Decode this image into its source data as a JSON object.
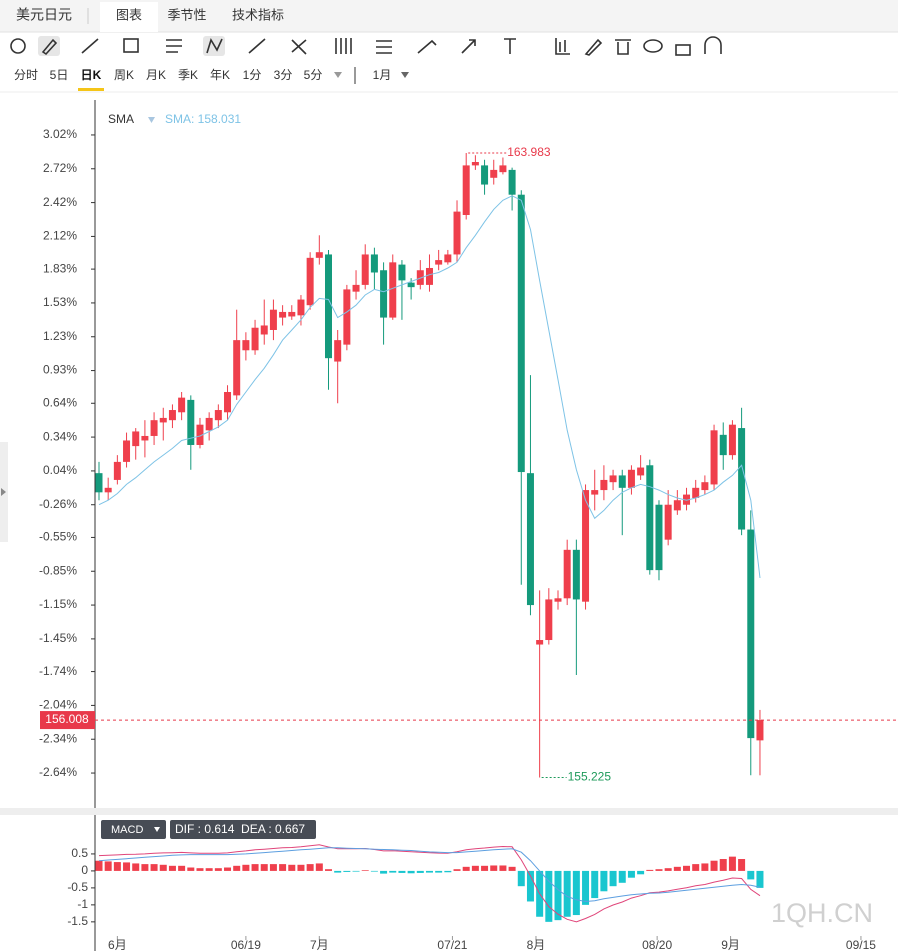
{
  "header": {
    "title": "美元日元",
    "tabs": [
      "图表",
      "季节性",
      "技术指标"
    ]
  },
  "periods": [
    "分时",
    "5日",
    "日K",
    "周K",
    "月K",
    "季K",
    "年K",
    "1分",
    "3分",
    "5分"
  ],
  "active_period": 2,
  "range": "1月",
  "watermark": "1QH.CN",
  "chart_data": [
    {
      "type": "candlestick",
      "indicator": "SMA",
      "indicator_value": "SMA: 158.031",
      "up_color": "#ef3f4c",
      "down_color": "#149a7c",
      "sma_color": "#7ec3e6",
      "high_label": "163.983",
      "low_label": "155.225",
      "last_label": "156.008",
      "ylim": [
        -2.95,
        3.33
      ],
      "yticks": [
        {
          "value": 3.02,
          "label": "3.02%"
        },
        {
          "value": 2.72,
          "label": "2.72%"
        },
        {
          "value": 2.42,
          "label": "2.42%"
        },
        {
          "value": 2.12,
          "label": "2.12%"
        },
        {
          "value": 1.83,
          "label": "1.83%"
        },
        {
          "value": 1.53,
          "label": "1.53%"
        },
        {
          "value": 1.23,
          "label": "1.23%"
        },
        {
          "value": 0.93,
          "label": "0.93%"
        },
        {
          "value": 0.64,
          "label": "0.64%"
        },
        {
          "value": 0.34,
          "label": "0.34%"
        },
        {
          "value": 0.04,
          "label": "0.04%"
        },
        {
          "value": -0.26,
          "label": "-0.26%"
        },
        {
          "value": -0.55,
          "label": "-0.55%"
        },
        {
          "value": -0.85,
          "label": "-0.85%"
        },
        {
          "value": -1.15,
          "label": "-1.15%"
        },
        {
          "value": -1.45,
          "label": "-1.45%"
        },
        {
          "value": -1.74,
          "label": "-1.74%"
        },
        {
          "value": -2.04,
          "label": "-2.04%"
        },
        {
          "value": -2.34,
          "label": "-2.34%"
        },
        {
          "value": -2.64,
          "label": "-2.64%"
        }
      ],
      "xticks": [
        {
          "value": 2,
          "label": "6月"
        },
        {
          "value": 16,
          "label": "06/19"
        },
        {
          "value": 24,
          "label": "7月"
        },
        {
          "value": 38.5,
          "label": "07/21"
        },
        {
          "value": 47.6,
          "label": "8月"
        },
        {
          "value": 60.8,
          "label": "08/20"
        },
        {
          "value": 68.8,
          "label": "9月"
        },
        {
          "value": 83,
          "label": "09/15"
        }
      ],
      "open": [
        0.02,
        -0.15,
        -0.04,
        0.12,
        0.26,
        0.31,
        0.35,
        0.47,
        0.49,
        0.56,
        0.67,
        0.27,
        0.4,
        0.49,
        0.56,
        0.71,
        1.11,
        1.11,
        1.25,
        1.29,
        1.4,
        1.41,
        1.42,
        1.51,
        1.93,
        1.96,
        1.01,
        1.16,
        1.63,
        1.69,
        1.96,
        1.82,
        1.4,
        1.87,
        1.71,
        1.69,
        1.69,
        1.87,
        1.89,
        1.96,
        2.31,
        2.75,
        2.75,
        2.64,
        2.69,
        2.71,
        2.49,
        0.02,
        -1.5,
        -1.46,
        -1.12,
        -1.09,
        -0.66,
        -1.12,
        -0.17,
        -0.13,
        -0.06,
        0.0,
        -0.11,
        0.0,
        0.09,
        -0.26,
        -0.57,
        -0.31,
        -0.26,
        -0.2,
        -0.13,
        -0.08,
        0.36,
        0.18,
        0.42,
        -0.48,
        -2.35
      ],
      "high": [
        0.12,
        -0.02,
        0.18,
        0.38,
        0.42,
        0.49,
        0.56,
        0.6,
        0.63,
        0.74,
        0.71,
        0.51,
        0.56,
        0.63,
        0.8,
        1.47,
        1.27,
        1.38,
        1.56,
        1.56,
        1.51,
        1.51,
        1.6,
        1.98,
        2.13,
        2.0,
        1.29,
        1.69,
        1.82,
        2.05,
        2.02,
        1.89,
        1.96,
        1.91,
        1.75,
        1.91,
        1.96,
        2.0,
        2.0,
        2.44,
        2.86,
        2.84,
        2.8,
        2.8,
        2.82,
        2.73,
        2.53,
        0.89,
        -1.02,
        -1.0,
        -1.02,
        -0.57,
        -0.57,
        -0.08,
        0.05,
        0.09,
        0.05,
        0.05,
        0.09,
        0.18,
        0.14,
        -0.22,
        -0.13,
        -0.13,
        -0.11,
        -0.04,
        0.0,
        0.45,
        0.47,
        0.49,
        0.6,
        -0.31,
        -2.08
      ],
      "low": [
        -0.22,
        -0.22,
        -0.08,
        0.07,
        0.14,
        0.16,
        0.27,
        0.31,
        0.42,
        0.49,
        0.05,
        0.24,
        0.31,
        0.42,
        0.49,
        0.67,
        1.02,
        1.07,
        1.16,
        1.2,
        1.33,
        1.38,
        1.33,
        1.47,
        1.87,
        0.76,
        0.64,
        1.11,
        1.56,
        1.65,
        1.65,
        1.16,
        1.38,
        1.38,
        1.56,
        1.65,
        1.63,
        1.82,
        1.87,
        1.89,
        2.27,
        2.71,
        2.49,
        2.58,
        2.67,
        2.35,
        -0.97,
        -1.24,
        -2.68,
        -1.5,
        -1.19,
        -1.15,
        -1.77,
        -1.19,
        -0.31,
        -0.22,
        -0.13,
        -0.53,
        -0.17,
        -0.04,
        -0.88,
        -0.93,
        -0.62,
        -0.35,
        -0.31,
        -0.24,
        -0.17,
        -0.13,
        0.05,
        0.14,
        -0.53,
        -2.66,
        -2.66
      ],
      "close": [
        -0.15,
        -0.11,
        0.12,
        0.31,
        0.39,
        0.35,
        0.49,
        0.51,
        0.58,
        0.69,
        0.27,
        0.45,
        0.51,
        0.58,
        0.74,
        1.2,
        1.2,
        1.31,
        1.33,
        1.47,
        1.45,
        1.45,
        1.56,
        1.93,
        1.98,
        1.04,
        1.2,
        1.65,
        1.69,
        1.96,
        1.8,
        1.4,
        1.89,
        1.73,
        1.67,
        1.82,
        1.84,
        1.91,
        1.96,
        2.34,
        2.75,
        2.78,
        2.58,
        2.71,
        2.75,
        2.49,
        0.03,
        -1.15,
        -1.46,
        -1.1,
        -1.09,
        -0.66,
        -1.1,
        -0.13,
        -0.13,
        -0.04,
        0.0,
        -0.11,
        0.05,
        0.07,
        -0.84,
        -0.84,
        -0.26,
        -0.22,
        -0.17,
        -0.11,
        -0.06,
        0.4,
        0.18,
        0.45,
        -0.48,
        -2.33,
        -2.17
      ],
      "sma": [
        -0.26,
        -0.22,
        -0.16,
        -0.08,
        -0.02,
        0.05,
        0.12,
        0.18,
        0.24,
        0.31,
        0.33,
        0.35,
        0.39,
        0.43,
        0.49,
        0.63,
        0.74,
        0.85,
        0.95,
        1.07,
        1.2,
        1.29,
        1.38,
        1.49,
        1.57,
        1.56,
        1.4,
        1.45,
        1.51,
        1.6,
        1.65,
        1.63,
        1.66,
        1.69,
        1.72,
        1.75,
        1.78,
        1.8,
        1.84,
        1.89,
        2.02,
        2.13,
        2.25,
        2.36,
        2.44,
        2.48,
        2.44,
        2.18,
        1.73,
        1.29,
        0.85,
        0.4,
        0.05,
        -0.22,
        -0.38,
        -0.31,
        -0.22,
        -0.15,
        -0.11,
        -0.08,
        -0.1,
        -0.13,
        -0.17,
        -0.2,
        -0.22,
        -0.2,
        -0.17,
        -0.13,
        -0.06,
        0.0,
        0.09,
        -0.22,
        -0.91
      ]
    },
    {
      "type": "macd",
      "indicator": "MACD",
      "info": "DIF : 0.614  DEA : 0.667",
      "bar_up_color": "#ef3f4c",
      "bar_down_color": "#19c6cf",
      "dif_color": "#e0457a",
      "dea_color": "#5d9fe0",
      "ylim": [
        -1.74,
        0.91
      ],
      "yticks": [
        0.5,
        0,
        -0.5,
        -1,
        -1.5
      ],
      "hist": [
        0.3,
        0.28,
        0.26,
        0.25,
        0.22,
        0.2,
        0.2,
        0.18,
        0.15,
        0.15,
        0.1,
        0.08,
        0.08,
        0.08,
        0.1,
        0.15,
        0.18,
        0.2,
        0.2,
        0.2,
        0.2,
        0.18,
        0.18,
        0.2,
        0.22,
        0.05,
        -0.05,
        -0.03,
        -0.02,
        0.02,
        -0.02,
        -0.08,
        -0.05,
        -0.06,
        -0.07,
        -0.06,
        -0.05,
        -0.05,
        -0.04,
        0.05,
        0.12,
        0.15,
        0.15,
        0.16,
        0.16,
        0.12,
        -0.45,
        -0.9,
        -1.35,
        -1.5,
        -1.45,
        -1.35,
        -1.3,
        -1.0,
        -0.8,
        -0.6,
        -0.45,
        -0.35,
        -0.2,
        -0.1,
        0.03,
        0.05,
        0.08,
        0.12,
        0.15,
        0.2,
        0.22,
        0.3,
        0.35,
        0.42,
        0.35,
        -0.25,
        -0.5
      ],
      "dif": [
        0.45,
        0.46,
        0.47,
        0.485,
        0.49,
        0.5,
        0.52,
        0.53,
        0.535,
        0.545,
        0.53,
        0.52,
        0.52,
        0.52,
        0.53,
        0.565,
        0.59,
        0.62,
        0.64,
        0.66,
        0.68,
        0.69,
        0.71,
        0.74,
        0.77,
        0.705,
        0.655,
        0.655,
        0.65,
        0.66,
        0.63,
        0.59,
        0.595,
        0.58,
        0.565,
        0.55,
        0.535,
        0.525,
        0.52,
        0.565,
        0.62,
        0.655,
        0.675,
        0.7,
        0.72,
        0.71,
        0.325,
        -0.15,
        -0.675,
        -1.05,
        -1.275,
        -1.425,
        -1.5,
        -1.4,
        -1.28,
        -1.12,
        -1.005,
        -0.915,
        -0.8,
        -0.73,
        -0.645,
        -0.625,
        -0.59,
        -0.54,
        -0.495,
        -0.44,
        -0.4,
        -0.33,
        -0.275,
        -0.21,
        -0.225,
        -0.545,
        -0.73
      ],
      "dea": [
        0.3,
        0.32,
        0.34,
        0.36,
        0.38,
        0.4,
        0.42,
        0.44,
        0.46,
        0.47,
        0.48,
        0.48,
        0.48,
        0.48,
        0.48,
        0.49,
        0.5,
        0.52,
        0.54,
        0.56,
        0.58,
        0.6,
        0.62,
        0.64,
        0.66,
        0.68,
        0.68,
        0.67,
        0.66,
        0.65,
        0.64,
        0.63,
        0.62,
        0.61,
        0.6,
        0.58,
        0.56,
        0.55,
        0.54,
        0.54,
        0.56,
        0.58,
        0.6,
        0.62,
        0.64,
        0.65,
        0.55,
        0.3,
        0.0,
        -0.3,
        -0.55,
        -0.75,
        -0.85,
        -0.9,
        -0.88,
        -0.82,
        -0.78,
        -0.74,
        -0.7,
        -0.68,
        -0.66,
        -0.65,
        -0.63,
        -0.6,
        -0.57,
        -0.54,
        -0.51,
        -0.48,
        -0.45,
        -0.42,
        -0.4,
        -0.42,
        -0.48
      ]
    }
  ]
}
